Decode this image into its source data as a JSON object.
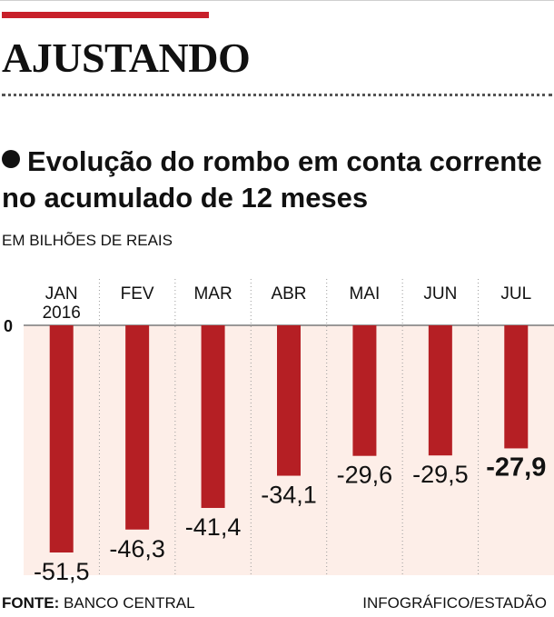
{
  "headline": "AJUSTANDO",
  "subtitle": "Evolução do rombo em conta corrente no acumulado de 12 meses",
  "unit": "EM BILHÕES DE REAIS",
  "source_label": "FONTE:",
  "source_value": "BANCO CENTRAL",
  "credit": "INFOGRÁFICO/ESTADÃO",
  "colors": {
    "bar": "#b51f24",
    "accent": "#c8202a",
    "background": "#fdeee8"
  },
  "chart_data": {
    "type": "bar",
    "title": "Evolução do rombo em conta corrente no acumulado de 12 meses",
    "ylabel": "EM BILHÕES DE REAIS",
    "categories": [
      "JAN 2016",
      "FEV",
      "MAR",
      "ABR",
      "MAI",
      "JUN",
      "JUL"
    ],
    "values": [
      -51.5,
      -46.3,
      -41.4,
      -34.1,
      -29.6,
      -29.5,
      -27.9
    ],
    "value_labels": [
      "-51,5",
      "-46,3",
      "-41,4",
      "-34,1",
      "-29,6",
      "-29,5",
      "-27,9"
    ],
    "highlight_index": 6,
    "y_tick": "0",
    "ylim": [
      -55,
      0
    ]
  }
}
